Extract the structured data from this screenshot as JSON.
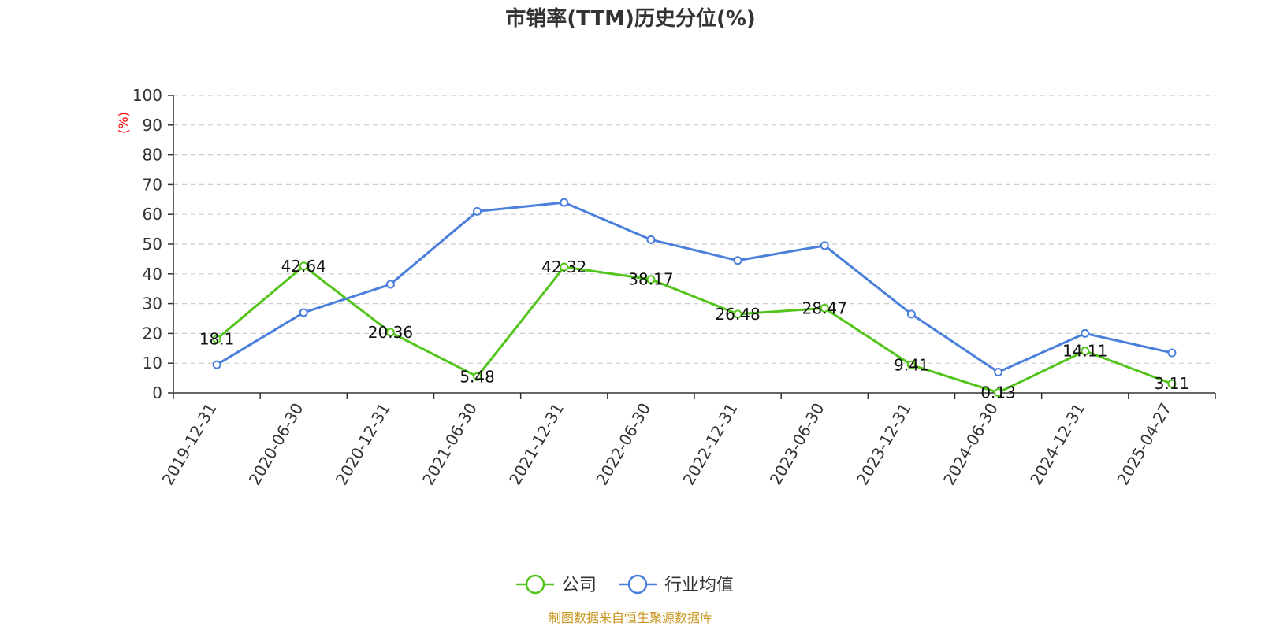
{
  "chart_data": {
    "type": "line",
    "title": "市销率(TTM)历史分位(%)",
    "ylabel": "(%)",
    "ylim": [
      0,
      100
    ],
    "yticks": [
      0,
      10,
      20,
      30,
      40,
      50,
      60,
      70,
      80,
      90,
      100
    ],
    "grid": true,
    "legend_position": "bottom",
    "categories": [
      "2019-12-31",
      "2020-06-30",
      "2020-12-31",
      "2021-06-30",
      "2021-12-31",
      "2022-06-30",
      "2022-12-31",
      "2023-06-30",
      "2023-12-31",
      "2024-06-30",
      "2024-12-31",
      "2025-04-27"
    ],
    "series": [
      {
        "name": "公司",
        "color": "#52c41a",
        "values": [
          18.1,
          42.64,
          20.36,
          5.48,
          42.32,
          38.17,
          26.48,
          28.47,
          9.41,
          0.13,
          14.11,
          3.11
        ],
        "labels": [
          "18.1",
          "42.64",
          "20.36",
          "5.48",
          "42.32",
          "38.17",
          "26.48",
          "28.47",
          "9.41",
          "0.13",
          "14.11",
          "3.11"
        ]
      },
      {
        "name": "行业均值",
        "color": "#4a7fdc",
        "values": [
          9.5,
          27,
          36.5,
          61,
          64,
          51.5,
          44.5,
          49.5,
          26.5,
          7,
          20,
          13.5
        ]
      }
    ],
    "source": "制图数据来自恒生聚源数据库",
    "colors": {
      "axis": "#333333",
      "grid": "#cccccc",
      "ylabel": "#ff0000",
      "source": "#c8961e"
    }
  }
}
